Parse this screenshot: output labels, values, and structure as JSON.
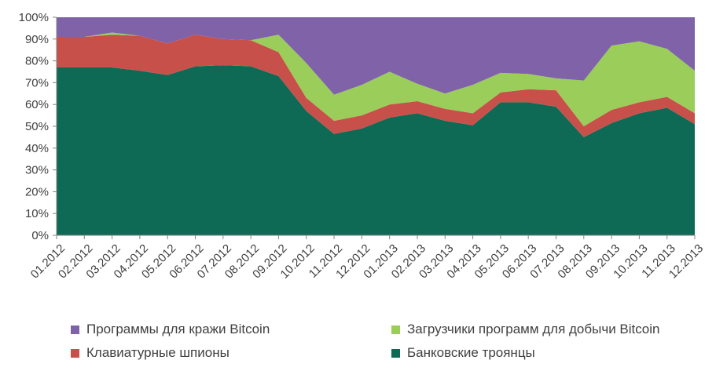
{
  "chart_data": {
    "type": "area",
    "stacked": true,
    "ylim": [
      0,
      100
    ],
    "ytick_labels": [
      "0%",
      "10%",
      "20%",
      "30%",
      "40%",
      "50%",
      "60%",
      "70%",
      "80%",
      "90%",
      "100%"
    ],
    "categories": [
      "01.2012",
      "02.2012",
      "03.2012",
      "04.2012",
      "05.2012",
      "06.2012",
      "07.2012",
      "08.2012",
      "09.2012",
      "10.2012",
      "11.2012",
      "12.2012",
      "01.2013",
      "02.2013",
      "03.2013",
      "04.2013",
      "05.2013",
      "06.2013",
      "07.2013",
      "08.2013",
      "09.2013",
      "10.2013",
      "11.2013",
      "12.2013"
    ],
    "series": [
      {
        "name": "Банковские троянцы",
        "color": "#0E6A55",
        "values": [
          77,
          77,
          77,
          75.5,
          73.5,
          77.5,
          78,
          77.5,
          73,
          57,
          46.5,
          49,
          54,
          56,
          52.5,
          50.5,
          61,
          61,
          59,
          45,
          51.5,
          56,
          58.5,
          51
        ]
      },
      {
        "name": "Клавиатурные шпионы",
        "color": "#C8504A",
        "values": [
          14,
          14,
          15,
          16,
          14.5,
          14.5,
          12,
          12,
          11,
          6,
          6,
          6,
          6,
          5.5,
          5.5,
          5.5,
          4.5,
          6,
          7.5,
          5,
          6,
          5,
          5,
          5
        ]
      },
      {
        "name": "Загрузчики программ для добычи Bitcoin",
        "color": "#9ACD5A",
        "values": [
          0,
          0,
          1,
          0,
          0,
          0,
          0,
          0,
          8,
          16,
          12,
          14,
          15,
          8,
          7,
          13,
          9,
          7,
          5.5,
          21,
          29.5,
          28,
          22,
          19.5
        ]
      },
      {
        "name": "Программы для кражи Bitcoin",
        "color": "#7F62A8",
        "values": [
          9,
          9,
          7,
          8.5,
          12,
          8,
          10,
          10.5,
          8,
          21,
          35.5,
          31,
          25,
          30.5,
          35,
          31,
          25.5,
          26,
          28,
          29,
          13,
          11,
          14.5,
          24.5
        ]
      }
    ],
    "legend": {
      "position": "bottom",
      "order": [
        "Программы для кражи Bitcoin",
        "Загрузчики программ для добычи Bitcoin",
        "Клавиатурные шпионы",
        "Банковские троянцы"
      ]
    },
    "grid": false
  }
}
